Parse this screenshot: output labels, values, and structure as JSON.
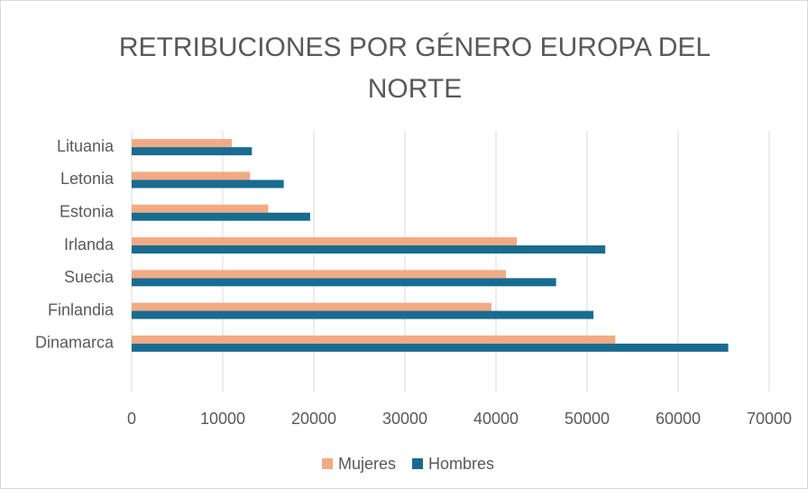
{
  "chart_data": {
    "type": "bar",
    "orientation": "horizontal",
    "title": "RETRIBUCIONES POR GÉNERO EUROPA DEL NORTE",
    "categories": [
      "Dinamarca",
      "Finlandia",
      "Suecia",
      "Irlanda",
      "Estonia",
      "Letonia",
      "Lituania"
    ],
    "series": [
      {
        "name": "Mujeres",
        "color": "#f2aa84",
        "values": [
          53100,
          39500,
          41100,
          42300,
          15000,
          13000,
          11000
        ]
      },
      {
        "name": "Hombres",
        "color": "#196b90",
        "values": [
          65500,
          50700,
          46600,
          52000,
          19600,
          16700,
          13200
        ]
      }
    ],
    "xlim": [
      0,
      70000
    ],
    "xticks": [
      0,
      10000,
      20000,
      30000,
      40000,
      50000,
      60000,
      70000
    ],
    "grid": true,
    "legend": "bottom"
  }
}
